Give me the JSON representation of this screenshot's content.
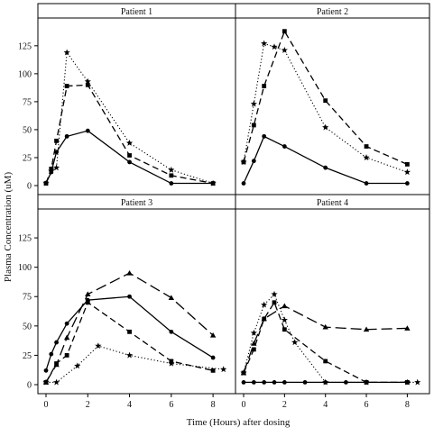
{
  "figure": {
    "ylabel": "Plasma Concentration (uM)",
    "xlabel": "Time (Hours) after dosing",
    "colors": {
      "ink": "#000000",
      "strip": "#ffffff",
      "background": "#ffffff"
    }
  },
  "chart_data": [
    {
      "type": "line",
      "title": "Patient 1",
      "xlim": [
        0,
        8.6
      ],
      "ylim": [
        0,
        145
      ],
      "xticks": [
        0,
        2,
        4,
        6,
        8
      ],
      "yticks": [
        0,
        25,
        50,
        75,
        100,
        125
      ],
      "series": [
        {
          "marker": "circle",
          "dash": "solid",
          "x": [
            0,
            0.25,
            0.5,
            1,
            2,
            4,
            6,
            8
          ],
          "y": [
            2,
            12,
            30,
            44,
            49,
            21,
            2,
            2
          ]
        },
        {
          "marker": "square",
          "dash": "dashed",
          "x": [
            0,
            0.25,
            0.5,
            1,
            2,
            4,
            6,
            8
          ],
          "y": [
            2,
            15,
            40,
            89,
            90,
            27,
            9,
            2
          ]
        },
        {
          "marker": "star",
          "dash": "dotted",
          "x": [
            0,
            0.25,
            0.5,
            1,
            2,
            4,
            6,
            8
          ],
          "y": [
            2,
            13,
            16,
            119,
            93,
            38,
            14,
            2
          ]
        }
      ]
    },
    {
      "type": "line",
      "title": "Patient 2",
      "xlim": [
        0,
        8.6
      ],
      "ylim": [
        0,
        145
      ],
      "xticks": [
        0,
        2,
        4,
        6,
        8
      ],
      "yticks": [
        0,
        25,
        50,
        75,
        100,
        125
      ],
      "series": [
        {
          "marker": "circle",
          "dash": "solid",
          "x": [
            0,
            0.5,
            1,
            2,
            4,
            6,
            8
          ],
          "y": [
            2,
            22,
            44,
            35,
            16,
            2,
            2
          ]
        },
        {
          "marker": "square",
          "dash": "dashed",
          "x": [
            0,
            0.5,
            1,
            2,
            4,
            6,
            8
          ],
          "y": [
            21,
            54,
            89,
            138,
            76,
            35,
            19
          ]
        },
        {
          "marker": "star",
          "dash": "dotted",
          "x": [
            0,
            0.5,
            1,
            1.5,
            2,
            4,
            6,
            8
          ],
          "y": [
            21,
            73,
            127,
            124,
            121,
            52,
            25,
            12
          ]
        }
      ]
    },
    {
      "type": "line",
      "title": "Patient 3",
      "xlim": [
        0,
        8.6
      ],
      "ylim": [
        0,
        145
      ],
      "xticks": [
        0,
        2,
        4,
        6,
        8
      ],
      "yticks": [
        0,
        25,
        50,
        75,
        100,
        125
      ],
      "series": [
        {
          "marker": "circle",
          "dash": "solid",
          "x": [
            0,
            0.25,
            0.5,
            1,
            2,
            4,
            6,
            8
          ],
          "y": [
            12,
            26,
            36,
            52,
            72,
            75,
            45,
            23
          ]
        },
        {
          "marker": "square",
          "dash": "dashed",
          "x": [
            0,
            0.5,
            1,
            2,
            4,
            6,
            8
          ],
          "y": [
            2,
            18,
            25,
            70,
            45,
            20,
            12
          ]
        },
        {
          "marker": "star",
          "dash": "dotted",
          "x": [
            0,
            0.5,
            1.5,
            2.5,
            4,
            6,
            8.5
          ],
          "y": [
            2,
            2,
            16,
            33,
            25,
            18,
            13
          ]
        },
        {
          "marker": "triangle",
          "dash": "longdash",
          "x": [
            0,
            0.5,
            1,
            2,
            4,
            6,
            8
          ],
          "y": [
            2,
            17,
            40,
            77,
            95,
            74,
            42
          ]
        }
      ]
    },
    {
      "type": "line",
      "title": "Patient 4",
      "xlim": [
        0,
        8.6
      ],
      "ylim": [
        0,
        145
      ],
      "xticks": [
        0,
        2,
        4,
        6,
        8
      ],
      "yticks": [
        0,
        25,
        50,
        75,
        100,
        125
      ],
      "series": [
        {
          "marker": "circle",
          "dash": "solid",
          "x": [
            0,
            0.5,
            1,
            1.5,
            2,
            3,
            4,
            5,
            6,
            8
          ],
          "y": [
            2,
            2,
            2,
            2,
            2,
            2,
            2,
            2,
            2,
            2
          ]
        },
        {
          "marker": "square",
          "dash": "dashed",
          "x": [
            0,
            0.5,
            1,
            1.5,
            2,
            4,
            6,
            8
          ],
          "y": [
            10,
            30,
            56,
            70,
            47,
            20,
            2,
            2
          ]
        },
        {
          "marker": "star",
          "dash": "dotted",
          "x": [
            0,
            0.5,
            1,
            1.5,
            2,
            2.5,
            4,
            6,
            8,
            8.5
          ],
          "y": [
            10,
            44,
            68,
            77,
            55,
            36,
            2,
            2,
            2,
            2
          ]
        },
        {
          "marker": "triangle",
          "dash": "longdash",
          "x": [
            0,
            0.5,
            1,
            2,
            4,
            6,
            8
          ],
          "y": [
            10,
            35,
            56,
            67,
            49,
            47,
            48
          ]
        }
      ]
    }
  ]
}
